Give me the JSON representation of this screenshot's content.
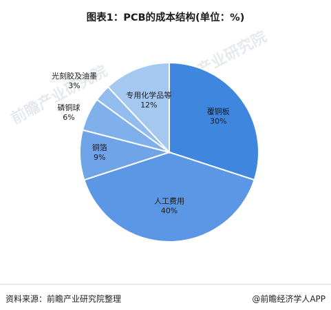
{
  "title": "图表1：PCB的成本结构(单位：%)",
  "watermark": "前瞻产业研究院",
  "footer": {
    "source": "资料来源：前瞻产业研究院整理",
    "brand": "@前瞻经济学人APP"
  },
  "chart_data": {
    "type": "pie",
    "title": "图表1：PCB的成本结构(单位：%)",
    "unit": "%",
    "slices": [
      {
        "name": "覆铜板",
        "value": 30,
        "label": "30%",
        "color": "#3f86df"
      },
      {
        "name": "人工费用",
        "value": 40,
        "label": "40%",
        "color": "#5b97e4"
      },
      {
        "name": "铜箔",
        "value": 9,
        "label": "9%",
        "color": "#6fa4e8"
      },
      {
        "name": "磷铜球",
        "value": 6,
        "label": "6%",
        "color": "#80b0eb"
      },
      {
        "name": "光刻胶及油墨",
        "value": 3,
        "label": "3%",
        "color": "#93bdee"
      },
      {
        "name": "专用化学品等",
        "value": 12,
        "label": "12%",
        "color": "#a5c8f1"
      }
    ]
  }
}
